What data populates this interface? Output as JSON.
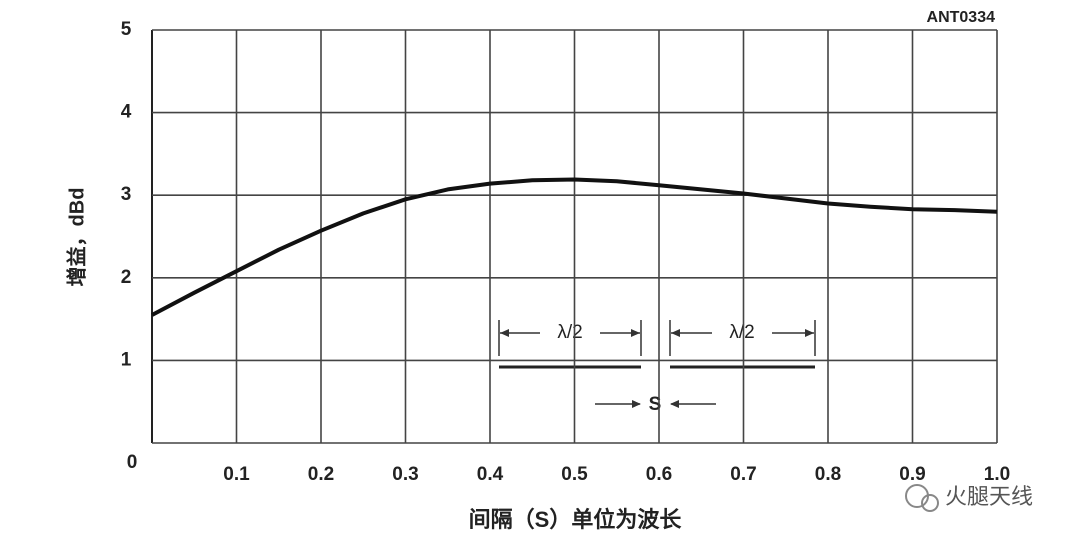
{
  "chart_data": {
    "type": "line",
    "code_label": "ANT0334",
    "x_label": "间隔（S）单位为波长",
    "y_label": "增益，dBd",
    "x": [
      0,
      0.05,
      0.1,
      0.15,
      0.2,
      0.25,
      0.3,
      0.35,
      0.4,
      0.45,
      0.5,
      0.55,
      0.6,
      0.65,
      0.7,
      0.75,
      0.8,
      0.85,
      0.9,
      0.95,
      1
    ],
    "values": [
      1.55,
      1.82,
      2.08,
      2.34,
      2.57,
      2.78,
      2.95,
      3.07,
      3.14,
      3.18,
      3.19,
      3.17,
      3.12,
      3.07,
      3.02,
      2.96,
      2.9,
      2.86,
      2.83,
      2.82,
      2.8
    ],
    "color": "#111111",
    "xlim": [
      0,
      1
    ],
    "ylim": [
      0,
      5
    ],
    "xticks": [
      0.1,
      0.2,
      0.3,
      0.4,
      0.5,
      0.6,
      0.7,
      0.8,
      0.9,
      {
        "value": 1,
        "label": "1.0"
      }
    ],
    "yticks": [
      0,
      1,
      2,
      3,
      4,
      5
    ],
    "grid": true,
    "annotations": [
      "λ/2",
      "λ/2",
      "S"
    ],
    "watermark": "火腿天线"
  }
}
